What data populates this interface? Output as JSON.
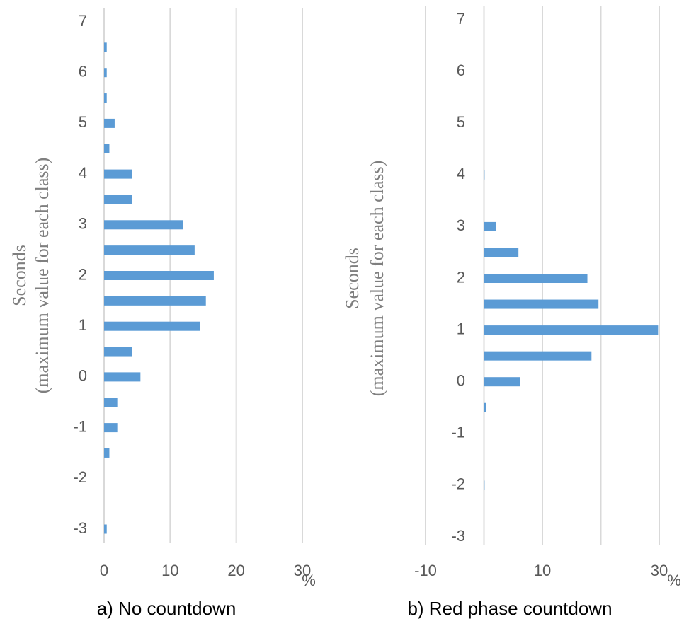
{
  "chart_data": [
    {
      "type": "bar",
      "orientation": "horizontal",
      "title": "a)  No countdown",
      "y_label": "Seconds",
      "y_sublabel": "(maximum value for each class)",
      "x_label": "%",
      "categories": [
        "-3",
        null,
        "-2",
        null,
        "-1",
        null,
        "0",
        null,
        "1",
        null,
        "2",
        null,
        "3",
        null,
        "4",
        null,
        "5",
        null,
        "6",
        null,
        "7"
      ],
      "values": [
        0.4,
        null,
        null,
        0.8,
        2.0,
        2.0,
        5.5,
        4.2,
        14.5,
        15.4,
        16.6,
        13.7,
        11.9,
        4.2,
        4.2,
        0.8,
        1.6,
        0.4,
        0.4,
        0.4,
        null
      ],
      "color": "#5b9bd5",
      "xlim": [
        0,
        30
      ],
      "xticks": [
        0,
        10,
        20,
        30
      ],
      "grid": true
    },
    {
      "type": "bar",
      "orientation": "horizontal",
      "title": "b)  Red phase countdown",
      "y_label": "Seconds",
      "y_sublabel": "(maximum value for each class)",
      "x_label": "%",
      "categories": [
        "-3",
        null,
        "-2",
        null,
        "-1",
        null,
        "0",
        null,
        "1",
        null,
        "2",
        null,
        "3",
        null,
        "4",
        null,
        "5",
        null,
        "6",
        null,
        "7"
      ],
      "values": [
        null,
        null,
        0.1,
        null,
        null,
        0.4,
        6.2,
        18.4,
        29.8,
        19.6,
        17.7,
        5.9,
        2.1,
        null,
        0.1,
        null,
        null,
        null,
        null,
        null,
        null
      ],
      "color": "#5b9bd5",
      "xlim": [
        -10,
        30
      ],
      "xticks": [
        -10,
        10,
        30
      ],
      "grid_xticks": [
        -10,
        0,
        10,
        20,
        30
      ],
      "grid": true
    }
  ]
}
